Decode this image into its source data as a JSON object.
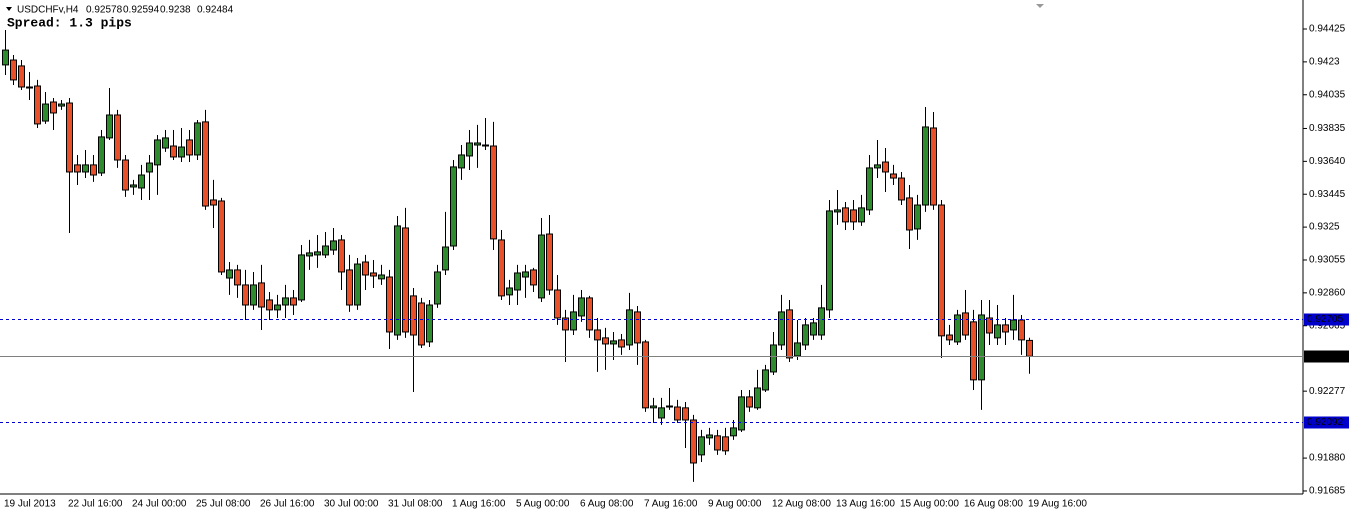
{
  "chart_data": {
    "type": "candlestick",
    "symbol": "USDCHFv,H4",
    "annotation": "Spread: 1.3 pips",
    "up_color": "#2e8b2e",
    "down_color": "#e8502a",
    "wick_color": "#000000",
    "categories": [
      "19 Jul 2013",
      null,
      null,
      null,
      null,
      null,
      null,
      null,
      "22 Jul 16:00",
      null,
      null,
      null,
      null,
      null,
      null,
      null,
      "24 Jul 00:00",
      null,
      null,
      null,
      null,
      null,
      null,
      null,
      "25 Jul 08:00",
      null,
      null,
      null,
      null,
      null,
      null,
      null,
      "26 Jul 16:00",
      null,
      null,
      null,
      null,
      null,
      null,
      null,
      "30 Jul 00:00",
      null,
      null,
      null,
      null,
      null,
      null,
      null,
      "31 Jul 08:00",
      null,
      null,
      null,
      null,
      null,
      null,
      null,
      "1 Aug 16:00",
      null,
      null,
      null,
      null,
      null,
      null,
      null,
      "5 Aug 00:00",
      null,
      null,
      null,
      null,
      null,
      null,
      null,
      "6 Aug 08:00",
      null,
      null,
      null,
      null,
      null,
      null,
      null,
      "7 Aug 16:00",
      null,
      null,
      null,
      null,
      null,
      null,
      null,
      "9 Aug 00:00",
      null,
      null,
      null,
      null,
      null,
      null,
      null,
      "12 Aug 08:00",
      null,
      null,
      null,
      null,
      null,
      null,
      null,
      "13 Aug 16:00",
      null,
      null,
      null,
      null,
      null,
      null,
      null,
      "15 Aug 00:00",
      null,
      null,
      null,
      null,
      null,
      null,
      null,
      "16 Aug 08:00",
      null,
      null,
      null,
      null,
      null,
      null,
      null,
      "19 Aug 16:00"
    ],
    "open": [
      0.94212,
      0.94241,
      0.94206,
      0.94081,
      0.94087,
      0.93879,
      0.93992,
      0.93968,
      0.93986,
      0.93619,
      0.93577,
      0.93619,
      0.93571,
      0.93779,
      0.93915,
      0.93648,
      0.93488,
      0.93482,
      0.93577,
      0.93619,
      0.93719,
      0.93731,
      0.93666,
      0.93767,
      0.93678,
      0.93874,
      0.93411,
      0.93405,
      0.92948,
      0.92996,
      0.92907,
      0.92788,
      0.92919,
      0.92818,
      0.92759,
      0.92788,
      0.9283,
      0.92818,
      0.93079,
      0.93085,
      0.93085,
      0.93114,
      0.93174,
      0.92996,
      0.92788,
      0.93043,
      0.92978,
      0.92943,
      0.92954,
      0.9261,
      0.93245,
      0.92842,
      0.928,
      0.92569,
      0.92794,
      0.92996,
      0.93138,
      0.93601,
      0.93672,
      0.93737,
      0.93731,
      0.93731,
      0.93174,
      0.92848,
      0.92877,
      0.92954,
      0.92996,
      0.9283,
      0.93209,
      0.92877,
      0.92711,
      0.9264,
      0.92723,
      0.9283,
      0.9264,
      0.92593,
      0.92557,
      0.92581,
      0.92551,
      0.92747,
      0.92569,
      0.92178,
      0.92118,
      0.92183,
      0.92183,
      0.92178,
      0.92106,
      0.91899,
      0.92,
      0.92012,
      0.92006,
      0.92012,
      0.92047,
      0.92243,
      0.92178,
      0.92284,
      0.92391,
      0.92551,
      0.92759,
      0.92486,
      0.92551,
      0.9261,
      0.9261,
      0.92759,
      0.9334,
      0.93364,
      0.93352,
      0.93281,
      0.93352,
      0.93601,
      0.93636,
      0.93565,
      0.93541,
      0.93423,
      0.93239,
      0.93381,
      0.93838,
      0.93381,
      0.9261,
      0.92569,
      0.92741,
      0.92688,
      0.92344,
      0.92711,
      0.92593,
      0.9267,
      0.9264,
      0.92699,
      0.92578
    ],
    "high": [
      0.94419,
      0.94271,
      0.94241,
      0.9417,
      0.94123,
      0.94051,
      0.94016,
      0.94004,
      0.94016,
      0.93678,
      0.93707,
      0.93678,
      0.93826,
      0.94075,
      0.93945,
      0.93678,
      0.9353,
      0.93619,
      0.93678,
      0.93796,
      0.93826,
      0.93826,
      0.93838,
      0.93826,
      0.93885,
      0.93945,
      0.9353,
      0.93423,
      0.93043,
      0.93026,
      0.92996,
      0.92984,
      0.93026,
      0.92865,
      0.92848,
      0.92907,
      0.92877,
      0.93144,
      0.93174,
      0.93203,
      0.93221,
      0.93245,
      0.93203,
      0.93085,
      0.93067,
      0.93085,
      0.93055,
      0.93026,
      0.92996,
      0.93316,
      0.93364,
      0.92889,
      0.9283,
      0.92818,
      0.93026,
      0.9334,
      0.93648,
      0.93737,
      0.93826,
      0.93856,
      0.93897,
      0.93874,
      0.93233,
      0.92937,
      0.93026,
      0.93026,
      0.93008,
      0.93304,
      0.93322,
      0.92966,
      0.92759,
      0.92848,
      0.92877,
      0.92842,
      0.92711,
      0.92652,
      0.92628,
      0.92616,
      0.9286,
      0.92782,
      0.92581,
      0.92237,
      0.92237,
      0.92296,
      0.92225,
      0.92213,
      0.92136,
      0.92047,
      0.92059,
      0.92047,
      0.92059,
      0.92106,
      0.92284,
      0.92284,
      0.92403,
      0.92433,
      0.92628,
      0.92848,
      0.92818,
      0.92699,
      0.92711,
      0.92711,
      0.92907,
      0.93411,
      0.9347,
      0.93399,
      0.93411,
      0.93441,
      0.93678,
      0.93767,
      0.93719,
      0.93619,
      0.93577,
      0.935,
      0.93441,
      0.93962,
      0.93933,
      0.93411,
      0.9267,
      0.92759,
      0.92877,
      0.92759,
      0.92818,
      0.92818,
      0.92788,
      0.92711,
      0.92848,
      0.92729,
      0.92594
    ],
    "low": [
      0.94152,
      0.94093,
      0.94063,
      0.94004,
      0.93838,
      0.93862,
      0.93826,
      0.93945,
      0.93215,
      0.935,
      0.93541,
      0.93518,
      0.93553,
      0.93767,
      0.93601,
      0.93429,
      0.93441,
      0.93411,
      0.93411,
      0.93441,
      0.93696,
      0.93648,
      0.93636,
      0.93636,
      0.93648,
      0.93352,
      0.93245,
      0.92966,
      0.92848,
      0.9283,
      0.92699,
      0.92759,
      0.9264,
      0.92699,
      0.92711,
      0.92711,
      0.92729,
      0.92806,
      0.92996,
      0.93008,
      0.93067,
      0.93085,
      0.92877,
      0.92747,
      0.92759,
      0.92877,
      0.92889,
      0.92907,
      0.92527,
      0.92581,
      0.92593,
      0.92272,
      0.92533,
      0.92539,
      0.92771,
      0.92966,
      0.93114,
      0.9353,
      0.93589,
      0.93601,
      0.93707,
      0.93114,
      0.92818,
      0.92788,
      0.92788,
      0.9283,
      0.92865,
      0.92806,
      0.92848,
      0.9267,
      0.9245,
      0.9261,
      0.92688,
      0.92593,
      0.92391,
      0.92403,
      0.92462,
      0.92492,
      0.92521,
      0.92433,
      0.92154,
      0.92089,
      0.92077,
      0.92166,
      0.92089,
      0.9194,
      0.91739,
      0.91857,
      0.91958,
      0.91899,
      0.91899,
      0.91988,
      0.92035,
      0.92154,
      0.92166,
      0.92272,
      0.92373,
      0.92521,
      0.9245,
      0.92462,
      0.92521,
      0.92581,
      0.92581,
      0.92711,
      0.93263,
      0.93233,
      0.93233,
      0.93257,
      0.93322,
      0.93541,
      0.93458,
      0.935,
      0.93381,
      0.9312,
      0.93174,
      0.9334,
      0.93352,
      0.92474,
      0.92551,
      0.92551,
      0.92581,
      0.92284,
      0.92166,
      0.92551,
      0.92551,
      0.92551,
      0.92581,
      0.92492,
      0.9238
    ],
    "close": [
      0.943,
      0.94123,
      0.94081,
      0.94075,
      0.93862,
      0.9398,
      0.93927,
      0.9398,
      0.93577,
      0.93577,
      0.93619,
      0.93559,
      0.93785,
      0.93915,
      0.93648,
      0.9347,
      0.935,
      0.93559,
      0.9363,
      0.93767,
      0.93779,
      0.93666,
      0.93725,
      0.93678,
      0.93868,
      0.93375,
      0.93381,
      0.92984,
      0.92996,
      0.92907,
      0.92788,
      0.92907,
      0.92776,
      0.92759,
      0.92788,
      0.9283,
      0.92788,
      0.93085,
      0.93097,
      0.93103,
      0.93138,
      0.93168,
      0.92984,
      0.92788,
      0.93031,
      0.92966,
      0.9296,
      0.92966,
      0.92628,
      0.93257,
      0.92628,
      0.9261,
      0.92551,
      0.92788,
      0.92984,
      0.93132,
      0.93607,
      0.93678,
      0.93749,
      0.93749,
      0.93737,
      0.9318,
      0.92842,
      0.92889,
      0.92978,
      0.92984,
      0.92907,
      0.93203,
      0.92877,
      0.92711,
      0.9264,
      0.92747,
      0.9283,
      0.9264,
      0.92581,
      0.92557,
      0.92575,
      0.92539,
      0.92759,
      0.92563,
      0.92178,
      0.92189,
      0.92178,
      0.92189,
      0.92106,
      0.92106,
      0.91851,
      0.92006,
      0.92017,
      0.91928,
      0.91923,
      0.92059,
      0.92243,
      0.92183,
      0.92296,
      0.92403,
      0.92551,
      0.92747,
      0.92474,
      0.92563,
      0.9267,
      0.92682,
      0.92771,
      0.93346,
      0.93352,
      0.93281,
      0.93281,
      0.93364,
      0.93601,
      0.93619,
      0.93577,
      0.93541,
      0.93411,
      0.93233,
      0.93381,
      0.93844,
      0.93381,
      0.92605,
      0.92581,
      0.92729,
      0.9261,
      0.92344,
      0.92729,
      0.92622,
      0.9267,
      0.92628,
      0.92699,
      0.92581,
      0.92484
    ],
    "ylim": [
      0.91667,
      0.94597
    ],
    "yticks": [
      0.94425,
      0.9423,
      0.94035,
      0.93835,
      {
        "value": 0.9364,
        "label": "0.93640"
      },
      0.93445,
      0.9325,
      0.93055,
      {
        "value": 0.9286,
        "label": "0.92860"
      },
      0.92665,
      0.92277,
      {
        "value": 0.9188,
        "label": "0.91880"
      },
      0.91685
    ],
    "hlines": [
      {
        "value": 0.92705,
        "color": "#0000cd",
        "style": "dashed"
      },
      {
        "value": 0.92484,
        "color": "#808080",
        "style": "solid"
      },
      {
        "value": 0.92092,
        "color": "#0000cd",
        "style": "dashed"
      }
    ]
  }
}
